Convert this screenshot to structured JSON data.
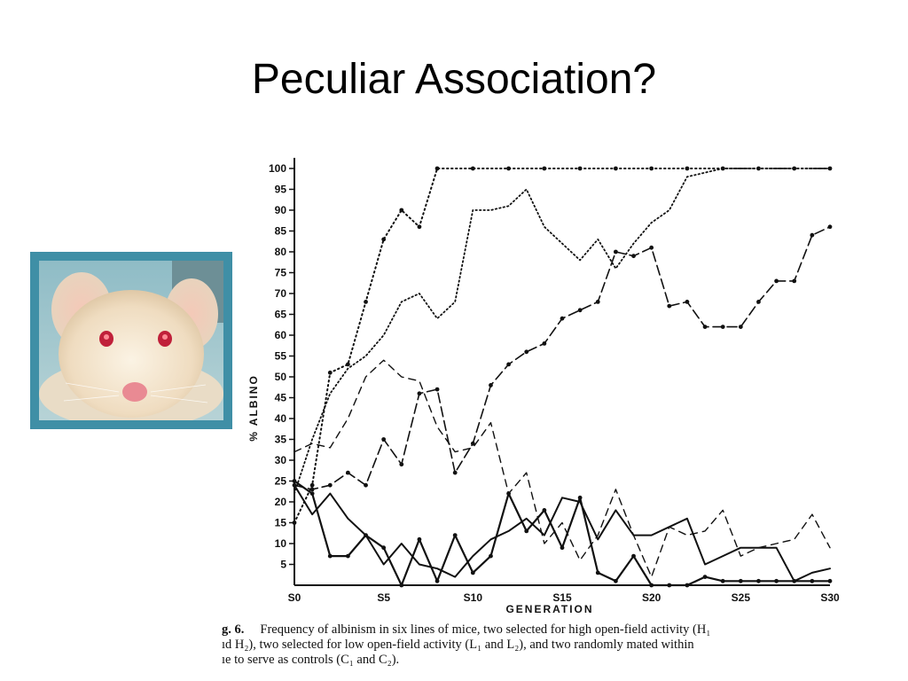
{
  "slide": {
    "title": "Peculiar Association?"
  },
  "caption": {
    "label": "g. 6.",
    "line1": "Frequency of albinism in six lines of mice, two selected for high open-field activity (H₁",
    "line2": "ıd H₂), two selected for low open-field activity (L₁ and L₂), and two randomly mated within",
    "line3": "ıe to serve as controls (C₁ and C₂)."
  },
  "colors": {
    "photo_frame": "#3f8fa6",
    "ink": "#111111"
  },
  "chart_data": {
    "type": "line",
    "xlabel": "GENERATION",
    "ylabel": "% ALBINO",
    "xlim": [
      0,
      30
    ],
    "ylim": [
      0,
      100
    ],
    "yticks": [
      5,
      10,
      15,
      20,
      25,
      30,
      35,
      40,
      45,
      50,
      55,
      60,
      65,
      70,
      75,
      80,
      85,
      90,
      95,
      100
    ],
    "xticks": [
      {
        "x": 0,
        "label": "S0"
      },
      {
        "x": 5,
        "label": "S5"
      },
      {
        "x": 10,
        "label": "S10"
      },
      {
        "x": 15,
        "label": "S15"
      },
      {
        "x": 20,
        "label": "S20"
      },
      {
        "x": 25,
        "label": "S25"
      },
      {
        "x": 30,
        "label": "S30"
      }
    ],
    "series": [
      {
        "style": "dotted-markers",
        "x": [
          0,
          1,
          2,
          3,
          4,
          5,
          6,
          7,
          8,
          10,
          12,
          14,
          16,
          18,
          20,
          22,
          24,
          26,
          28,
          30
        ],
        "y": [
          15,
          24,
          51,
          53,
          68,
          83,
          90,
          86,
          100,
          100,
          100,
          100,
          100,
          100,
          100,
          100,
          100,
          100,
          100,
          100
        ]
      },
      {
        "style": "dotted",
        "x": [
          0,
          1,
          2,
          3,
          4,
          5,
          6,
          7,
          8,
          9,
          10,
          11,
          12,
          13,
          14,
          15,
          16,
          17,
          18,
          19,
          20,
          21,
          22,
          24,
          26,
          28,
          30
        ],
        "y": [
          22,
          35,
          46,
          52,
          55,
          60,
          68,
          70,
          64,
          68,
          90,
          90,
          91,
          95,
          86,
          82,
          78,
          83,
          76,
          82,
          87,
          90,
          98,
          100,
          100,
          100,
          100
        ]
      },
      {
        "style": "long-dash-markers",
        "x": [
          0,
          1,
          2,
          3,
          4,
          5,
          6,
          7,
          8,
          9,
          10,
          11,
          12,
          13,
          14,
          15,
          16,
          17,
          18,
          19,
          20,
          21,
          22,
          23,
          24,
          25,
          26,
          27,
          28,
          29,
          30
        ],
        "y": [
          24,
          23,
          24,
          27,
          24,
          35,
          29,
          46,
          47,
          27,
          34,
          48,
          53,
          56,
          58,
          64,
          66,
          68,
          80,
          79,
          81,
          67,
          68,
          62,
          62,
          62,
          68,
          73,
          73,
          84,
          86
        ]
      },
      {
        "style": "dash",
        "x": [
          0,
          1,
          2,
          3,
          4,
          5,
          6,
          7,
          8,
          9,
          10,
          11,
          12,
          13,
          14,
          15,
          16,
          17,
          18,
          19,
          20,
          21,
          22,
          23,
          24,
          25,
          26,
          27,
          28,
          29,
          30
        ],
        "y": [
          32,
          34,
          33,
          40,
          50,
          54,
          50,
          49,
          38,
          32,
          33,
          39,
          22,
          27,
          10,
          15,
          6,
          12,
          23,
          12,
          2,
          14,
          12,
          13,
          18,
          7,
          9,
          10,
          11,
          17,
          9
        ]
      },
      {
        "style": "solid",
        "x": [
          0,
          1,
          2,
          3,
          4,
          5,
          6,
          7,
          8,
          9,
          10,
          11,
          12,
          13,
          14,
          15,
          16,
          17,
          18,
          19,
          20,
          21,
          22,
          23,
          24,
          25,
          26,
          27,
          28,
          29,
          30
        ],
        "y": [
          24,
          17,
          22,
          16,
          12,
          5,
          10,
          5,
          4,
          2,
          7,
          11,
          13,
          16,
          12,
          21,
          20,
          11,
          18,
          12,
          12,
          14,
          16,
          5,
          7,
          9,
          9,
          9,
          1,
          3,
          4
        ]
      },
      {
        "style": "solid-markers",
        "x": [
          0,
          1,
          2,
          3,
          4,
          5,
          6,
          7,
          8,
          9,
          10,
          11,
          12,
          13,
          14,
          15,
          16,
          17,
          18,
          19,
          20,
          21,
          22,
          23,
          24,
          25,
          26,
          27,
          28,
          29,
          30
        ],
        "y": [
          25,
          22,
          7,
          7,
          12,
          9,
          0,
          11,
          1,
          12,
          3,
          7,
          22,
          13,
          18,
          9,
          21,
          3,
          1,
          7,
          0,
          0,
          0,
          2,
          1,
          1,
          1,
          1,
          1,
          1,
          1
        ]
      }
    ]
  }
}
